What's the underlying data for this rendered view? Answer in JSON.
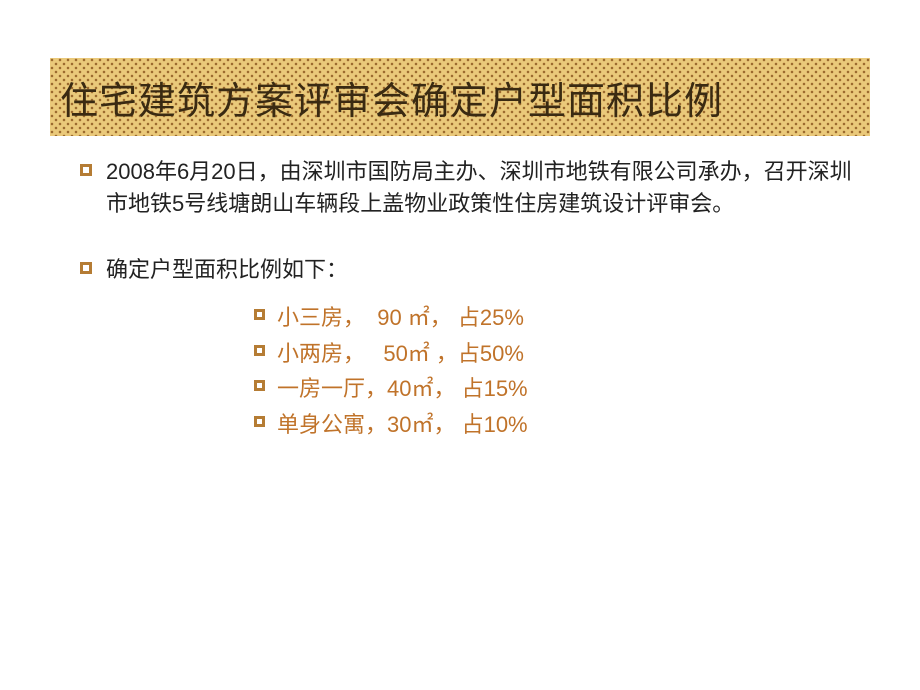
{
  "title": "住宅建筑方案评审会确定户型面积比例",
  "paragraph1": "2008年6月20日，由深圳市国防局主办、深圳市地铁有限公司承办，召开深圳市地铁5号线塘朗山车辆段上盖物业政策性住房建筑设计评审会。",
  "paragraph2": "确定户型面积比例如下：",
  "items": [
    "小三房，  90 ㎡， 占25%",
    "小两房，   50㎡ ，占50%",
    "一房一厅，40㎡， 占15%",
    "单身公寓，30㎡， 占10%"
  ],
  "colors": {
    "title_text": "#3a2a12",
    "band_bg": "#eac97a",
    "band_dot": "#9c6b2f",
    "bullet_border": "#b57c34",
    "body_text": "#222222",
    "accent_text": "#c0732a",
    "background": "#ffffff"
  },
  "typography": {
    "title_fontsize": 38,
    "body_fontsize": 22,
    "line_height": 1.45
  }
}
